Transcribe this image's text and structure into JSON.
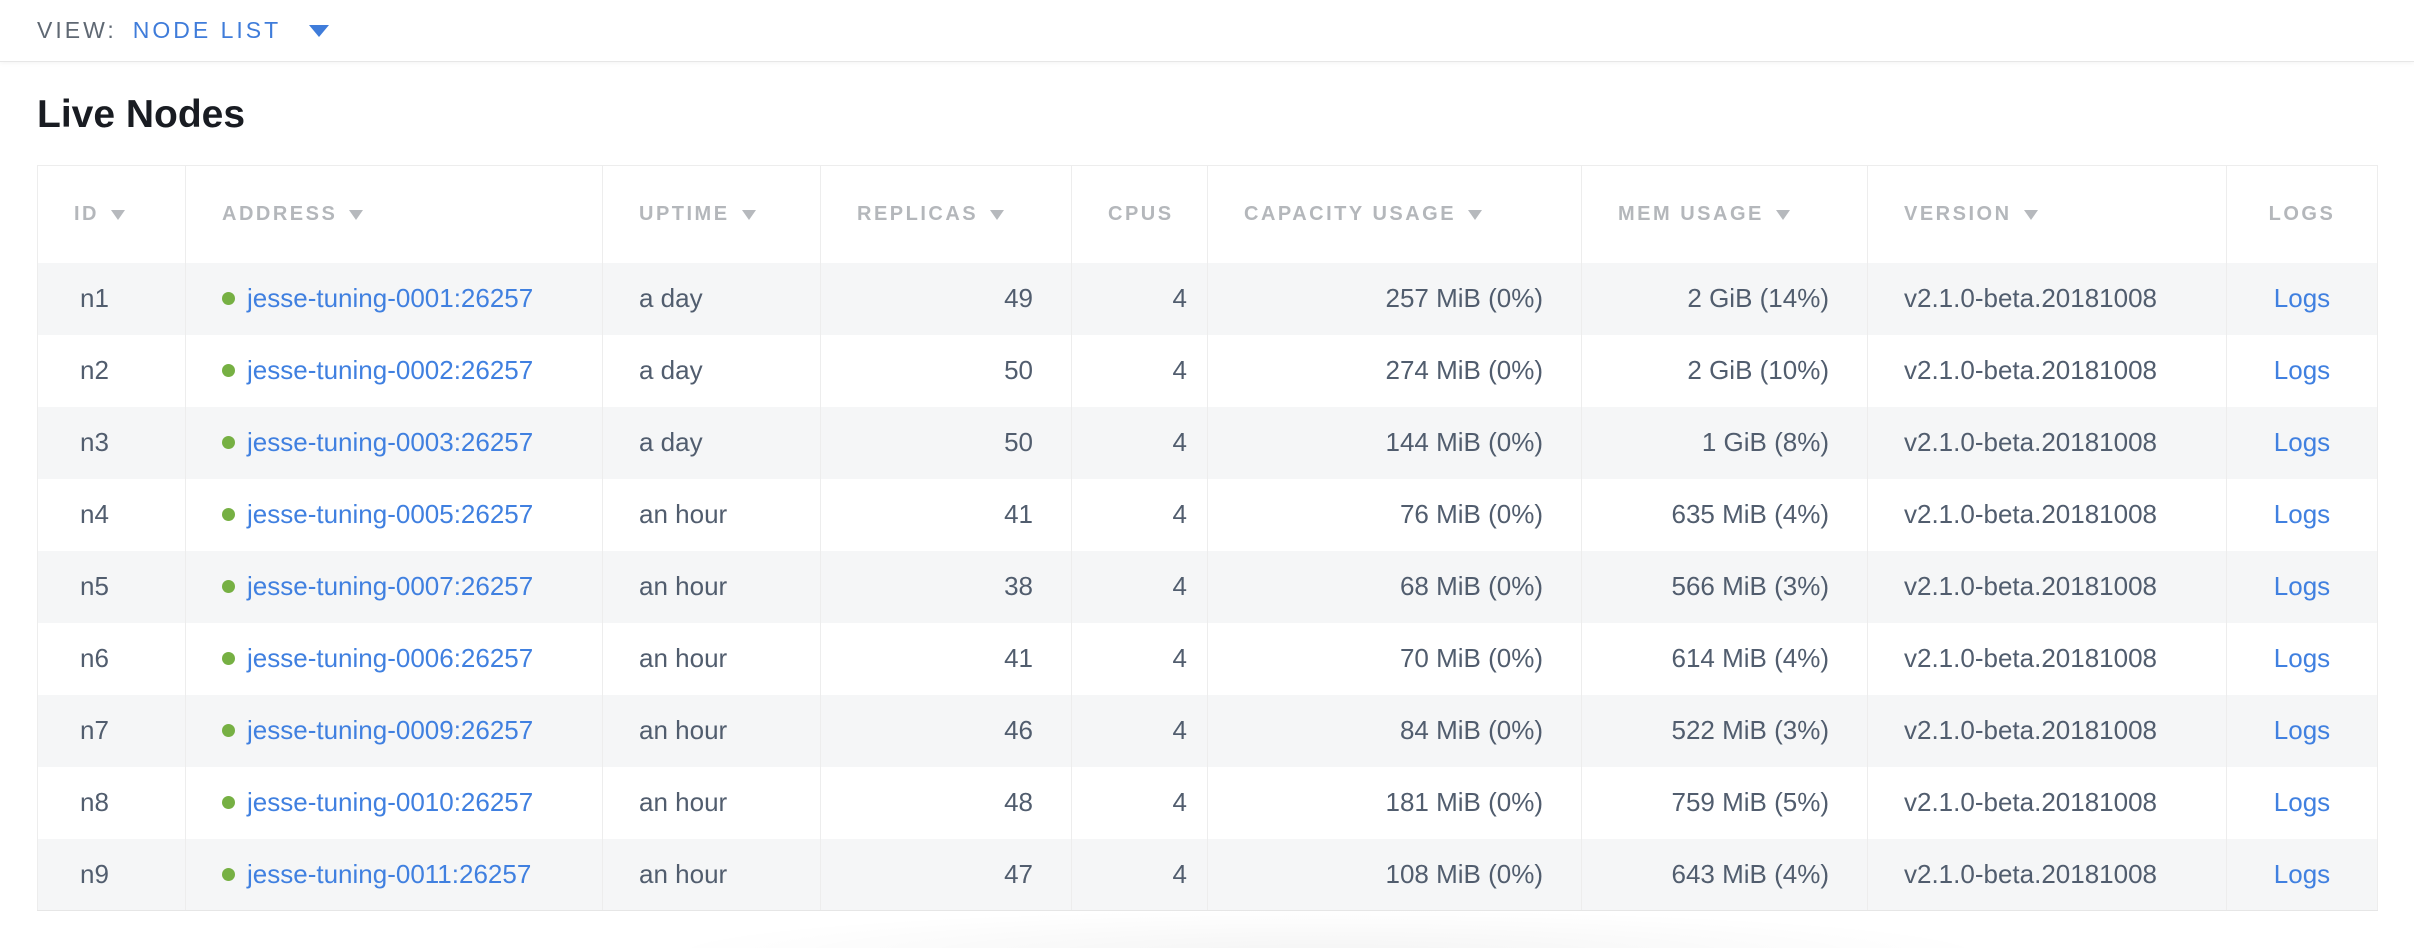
{
  "view_bar": {
    "label": "VIEW:",
    "selected": "NODE LIST"
  },
  "page": {
    "title": "Live Nodes"
  },
  "colors": {
    "link_blue": "#4080e0",
    "selector_blue": "#3f7cda",
    "live_green": "#76b043",
    "header_gray": "#b4b7bb",
    "body_text": "#515d6e",
    "row_alt_bg": "#f5f6f7"
  },
  "table": {
    "columns": [
      {
        "key": "id",
        "label": "ID",
        "sortable": true,
        "align": "left"
      },
      {
        "key": "address",
        "label": "ADDRESS",
        "sortable": true,
        "align": "left"
      },
      {
        "key": "uptime",
        "label": "UPTIME",
        "sortable": true,
        "align": "left"
      },
      {
        "key": "replicas",
        "label": "REPLICAS",
        "sortable": true,
        "align": "right"
      },
      {
        "key": "cpus",
        "label": "CPUS",
        "sortable": false,
        "align": "right"
      },
      {
        "key": "capacity_usage",
        "label": "CAPACITY USAGE",
        "sortable": true,
        "align": "right"
      },
      {
        "key": "mem_usage",
        "label": "MEM USAGE",
        "sortable": true,
        "align": "right"
      },
      {
        "key": "version",
        "label": "VERSION",
        "sortable": true,
        "align": "left"
      },
      {
        "key": "logs",
        "label": "LOGS",
        "sortable": false,
        "align": "center"
      }
    ],
    "rows": [
      {
        "id": "n1",
        "status": "live",
        "address": "jesse-tuning-0001:26257",
        "uptime": "a day",
        "replicas": "49",
        "cpus": "4",
        "capacity_usage": "257 MiB (0%)",
        "mem_usage": "2 GiB (14%)",
        "version": "v2.1.0-beta.20181008",
        "logs": "Logs"
      },
      {
        "id": "n2",
        "status": "live",
        "address": "jesse-tuning-0002:26257",
        "uptime": "a day",
        "replicas": "50",
        "cpus": "4",
        "capacity_usage": "274 MiB (0%)",
        "mem_usage": "2 GiB (10%)",
        "version": "v2.1.0-beta.20181008",
        "logs": "Logs"
      },
      {
        "id": "n3",
        "status": "live",
        "address": "jesse-tuning-0003:26257",
        "uptime": "a day",
        "replicas": "50",
        "cpus": "4",
        "capacity_usage": "144 MiB (0%)",
        "mem_usage": "1 GiB (8%)",
        "version": "v2.1.0-beta.20181008",
        "logs": "Logs"
      },
      {
        "id": "n4",
        "status": "live",
        "address": "jesse-tuning-0005:26257",
        "uptime": "an hour",
        "replicas": "41",
        "cpus": "4",
        "capacity_usage": "76 MiB (0%)",
        "mem_usage": "635 MiB (4%)",
        "version": "v2.1.0-beta.20181008",
        "logs": "Logs"
      },
      {
        "id": "n5",
        "status": "live",
        "address": "jesse-tuning-0007:26257",
        "uptime": "an hour",
        "replicas": "38",
        "cpus": "4",
        "capacity_usage": "68 MiB (0%)",
        "mem_usage": "566 MiB (3%)",
        "version": "v2.1.0-beta.20181008",
        "logs": "Logs"
      },
      {
        "id": "n6",
        "status": "live",
        "address": "jesse-tuning-0006:26257",
        "uptime": "an hour",
        "replicas": "41",
        "cpus": "4",
        "capacity_usage": "70 MiB (0%)",
        "mem_usage": "614 MiB (4%)",
        "version": "v2.1.0-beta.20181008",
        "logs": "Logs"
      },
      {
        "id": "n7",
        "status": "live",
        "address": "jesse-tuning-0009:26257",
        "uptime": "an hour",
        "replicas": "46",
        "cpus": "4",
        "capacity_usage": "84 MiB (0%)",
        "mem_usage": "522 MiB (3%)",
        "version": "v2.1.0-beta.20181008",
        "logs": "Logs"
      },
      {
        "id": "n8",
        "status": "live",
        "address": "jesse-tuning-0010:26257",
        "uptime": "an hour",
        "replicas": "48",
        "cpus": "4",
        "capacity_usage": "181 MiB (0%)",
        "mem_usage": "759 MiB (5%)",
        "version": "v2.1.0-beta.20181008",
        "logs": "Logs"
      },
      {
        "id": "n9",
        "status": "live",
        "address": "jesse-tuning-0011:26257",
        "uptime": "an hour",
        "replicas": "47",
        "cpus": "4",
        "capacity_usage": "108 MiB (0%)",
        "mem_usage": "643 MiB (4%)",
        "version": "v2.1.0-beta.20181008",
        "logs": "Logs"
      }
    ]
  }
}
